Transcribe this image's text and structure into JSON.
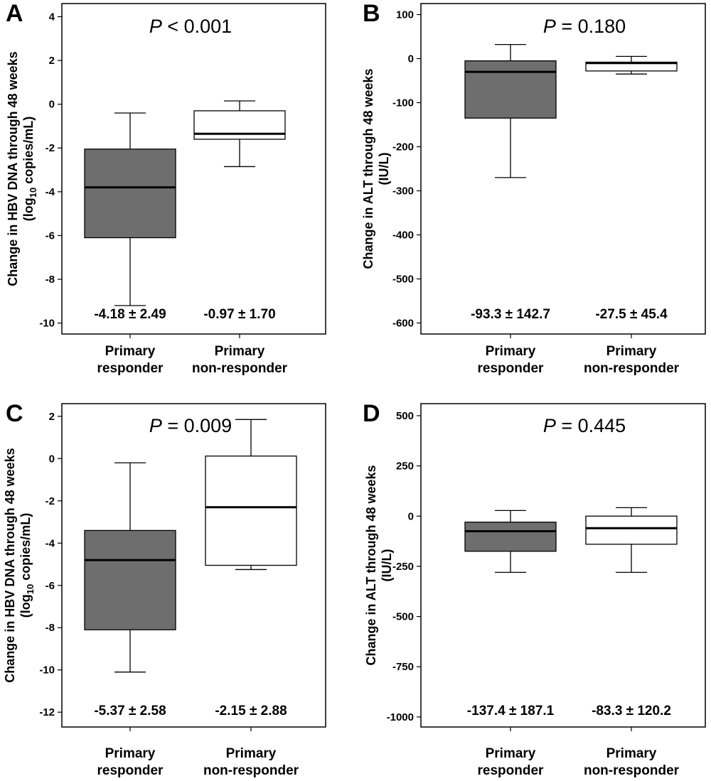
{
  "chart_data": [
    {
      "panel": "A",
      "type": "boxplot",
      "p_value": {
        "prefix": "P",
        "text": " < 0.001"
      },
      "ylabel": "Change in HBV DNA through 48 weeks",
      "ylabel_unit": {
        "pre": "(log",
        "sub": "10",
        "post": " copies/mL)"
      },
      "ylim": [
        -10.5,
        4.6
      ],
      "yticks": [
        4,
        2,
        0,
        -2,
        -4,
        -6,
        -8,
        -10
      ],
      "categories": [
        {
          "line1": "Primary",
          "line2": "responder"
        },
        {
          "line1": "Primary",
          "line2": "non-responder"
        }
      ],
      "boxes": [
        {
          "whisker_low": -9.2,
          "q1": -6.1,
          "median": -3.8,
          "q3": -2.05,
          "whisker_high": -0.4,
          "color": "#6e6e6e",
          "stat": "-4.18 ± 2.49"
        },
        {
          "whisker_low": -2.85,
          "q1": -1.6,
          "median": -1.35,
          "q3": -0.3,
          "whisker_high": 0.15,
          "color": "#ffffff",
          "stat": "-0.97 ± 1.70"
        }
      ]
    },
    {
      "panel": "B",
      "type": "boxplot",
      "p_value": {
        "prefix": "P",
        "text": " = 0.180"
      },
      "ylabel": "Change in ALT through 48 weeks",
      "ylabel_unit": {
        "pre": "(IU/L)",
        "sub": "",
        "post": ""
      },
      "ylim": [
        -625,
        125
      ],
      "yticks": [
        100,
        0,
        -100,
        -200,
        -300,
        -400,
        -500,
        -600
      ],
      "categories": [
        {
          "line1": "Primary",
          "line2": "responder"
        },
        {
          "line1": "Primary",
          "line2": "non-responder"
        }
      ],
      "boxes": [
        {
          "whisker_low": -270,
          "q1": -135,
          "median": -30,
          "q3": -5,
          "whisker_high": 32,
          "color": "#6e6e6e",
          "stat": "-93.3 ± 142.7"
        },
        {
          "whisker_low": -35,
          "q1": -28,
          "median": -10,
          "q3": -8,
          "whisker_high": 5,
          "color": "#ffffff",
          "stat": "-27.5 ± 45.4"
        }
      ]
    },
    {
      "panel": "C",
      "type": "boxplot",
      "p_value": {
        "prefix": "P",
        "text": " = 0.009"
      },
      "ylabel": "Change in HBV DNA through 48 weeks",
      "ylabel_unit": {
        "pre": "(log",
        "sub": "10",
        "post": " copies/mL)"
      },
      "ylim": [
        -12.7,
        2.6
      ],
      "yticks": [
        2,
        0,
        -2,
        -4,
        -6,
        -8,
        -10,
        -12
      ],
      "categories": [
        {
          "line1": "Primary",
          "line2": "responder"
        },
        {
          "line1": "Primary",
          "line2": "non-responder"
        }
      ],
      "boxes": [
        {
          "whisker_low": -10.1,
          "q1": -8.1,
          "median": -4.8,
          "q3": -3.4,
          "whisker_high": -0.2,
          "color": "#6e6e6e",
          "stat": "-5.37 ± 2.58"
        },
        {
          "whisker_low": -5.25,
          "q1": -5.05,
          "median": -2.3,
          "q3": 0.12,
          "whisker_high": 1.85,
          "color": "#ffffff",
          "stat": "-2.15 ± 2.88"
        }
      ]
    },
    {
      "panel": "D",
      "type": "boxplot",
      "p_value": {
        "prefix": "P",
        "text": " = 0.445"
      },
      "ylabel": "Change in ALT through 48 weeks",
      "ylabel_unit": {
        "pre": "(IU/L)",
        "sub": "",
        "post": ""
      },
      "ylim": [
        -1050,
        560
      ],
      "yticks": [
        500,
        250,
        0,
        -250,
        -500,
        -750,
        -1000
      ],
      "categories": [
        {
          "line1": "Primary",
          "line2": "responder"
        },
        {
          "line1": "Primary",
          "line2": "non-responder"
        }
      ],
      "boxes": [
        {
          "whisker_low": -280,
          "q1": -175,
          "median": -75,
          "q3": -30,
          "whisker_high": 28,
          "color": "#6e6e6e",
          "stat": "-137.4 ± 187.1"
        },
        {
          "whisker_low": -280,
          "q1": -140,
          "median": -60,
          "q3": 0,
          "whisker_high": 42,
          "color": "#ffffff",
          "stat": "-83.3 ± 120.2"
        }
      ]
    }
  ]
}
